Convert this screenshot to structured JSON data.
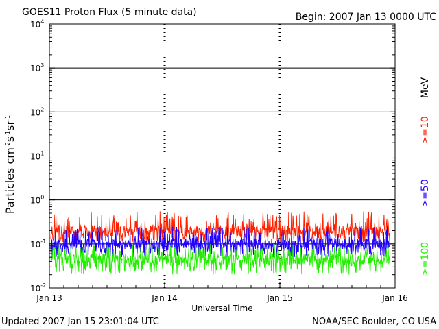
{
  "header": {
    "title": "GOES11 Proton Flux (5 minute data)",
    "begin": "Begin: 2007 Jan 13 0000 UTC"
  },
  "footer": {
    "updated": "Updated 2007 Jan 15 23:01:04 UTC",
    "credit": "NOAA/SEC Boulder, CO USA"
  },
  "chart_data": {
    "type": "line",
    "title": "GOES11 Proton Flux (5 minute data)",
    "xlabel": "Universal Time",
    "ylabel": "Particles cm-2 s-1 sr-1",
    "yscale": "log",
    "ylim": [
      0.01,
      10000
    ],
    "xlim": [
      "2007-01-13 00:00",
      "2007-01-16 00:00"
    ],
    "x_ticks": [
      "Jan 13",
      "Jan 14",
      "Jan 15",
      "Jan 16"
    ],
    "y_ticks": [
      {
        "value": 0.01,
        "base": "10",
        "exp": "-2"
      },
      {
        "value": 0.1,
        "base": "10",
        "exp": "-1"
      },
      {
        "value": 1,
        "base": "10",
        "exp": "0"
      },
      {
        "value": 10,
        "base": "10",
        "exp": "1"
      },
      {
        "value": 100,
        "base": "10",
        "exp": "2"
      },
      {
        "value": 1000,
        "base": "10",
        "exp": "3"
      },
      {
        "value": 10000,
        "base": "10",
        "exp": "4"
      }
    ],
    "threshold_lines": [
      {
        "value": 10,
        "style": "dashed"
      },
      {
        "value": 100,
        "style": "solid"
      },
      {
        "value": 1000,
        "style": "solid"
      },
      {
        "value": 1,
        "style": "solid"
      },
      {
        "value": 0.1,
        "style": "solid"
      }
    ],
    "grid": "dashed vertical day separators",
    "legend_unit": "MeV",
    "series": [
      {
        "name": ">=10",
        "color": "#ff2200",
        "baseline": 0.2,
        "low": 0.11,
        "high": 0.55
      },
      {
        "name": ">=50",
        "color": "#2200ff",
        "baseline": 0.1,
        "low": 0.05,
        "high": 0.25
      },
      {
        "name": ">=100",
        "color": "#22ee00",
        "baseline": 0.045,
        "low": 0.02,
        "high": 0.1
      }
    ]
  }
}
